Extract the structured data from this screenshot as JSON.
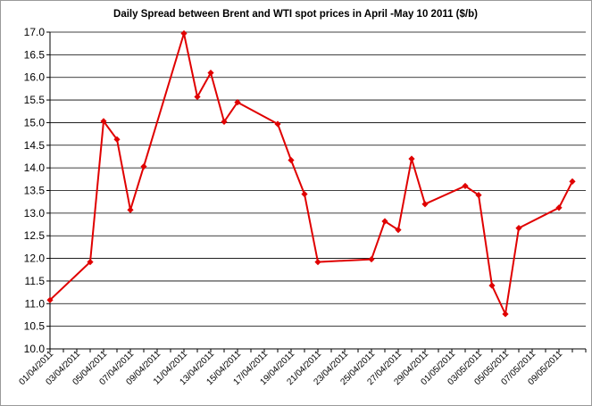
{
  "chart_data": {
    "type": "line",
    "title": "Daily  Spread between Brent and WTI spot prices in April -May 10 2011 ($/b)",
    "xlabel": "",
    "ylabel": "",
    "ylim": [
      10.0,
      17.0
    ],
    "ytick_labels": [
      "10.0",
      "10.5",
      "11.0",
      "11.5",
      "12.0",
      "12.5",
      "13.0",
      "13.5",
      "14.0",
      "14.5",
      "15.0",
      "15.5",
      "16.0",
      "16.5",
      "17.0"
    ],
    "xlim": [
      "01/04/2011",
      "11/05/2011"
    ],
    "xtick_labels": [
      "01/04/2011",
      "03/04/2011",
      "05/04/2011",
      "07/04/2011",
      "09/04/2011",
      "11/04/2011",
      "13/04/2011",
      "15/04/2011",
      "17/04/2011",
      "19/04/2011",
      "21/04/2011",
      "23/04/2011",
      "25/04/2011",
      "27/04/2011",
      "29/04/2011",
      "01/05/2011",
      "03/05/2011",
      "05/05/2011",
      "07/05/2011",
      "09/05/2011"
    ],
    "grid": "horizontal",
    "line_color": "#e00000",
    "series": [
      {
        "points": [
          {
            "x": "01/04/2011",
            "y": 11.08
          },
          {
            "x": "04/04/2011",
            "y": 11.92
          },
          {
            "x": "05/04/2011",
            "y": 15.03
          },
          {
            "x": "06/04/2011",
            "y": 14.63
          },
          {
            "x": "07/04/2011",
            "y": 13.07
          },
          {
            "x": "08/04/2011",
            "y": 14.03
          },
          {
            "x": "11/04/2011",
            "y": 16.97
          },
          {
            "x": "12/04/2011",
            "y": 15.57
          },
          {
            "x": "13/04/2011",
            "y": 16.1
          },
          {
            "x": "14/04/2011",
            "y": 15.02
          },
          {
            "x": "15/04/2011",
            "y": 15.45
          },
          {
            "x": "18/04/2011",
            "y": 14.97
          },
          {
            "x": "19/04/2011",
            "y": 14.17
          },
          {
            "x": "20/04/2011",
            "y": 13.42
          },
          {
            "x": "21/04/2011",
            "y": 11.92
          },
          {
            "x": "25/04/2011",
            "y": 11.98
          },
          {
            "x": "26/04/2011",
            "y": 12.82
          },
          {
            "x": "27/04/2011",
            "y": 12.63
          },
          {
            "x": "28/04/2011",
            "y": 14.2
          },
          {
            "x": "29/04/2011",
            "y": 13.2
          },
          {
            "x": "02/05/2011",
            "y": 13.6
          },
          {
            "x": "03/05/2011",
            "y": 13.4
          },
          {
            "x": "04/05/2011",
            "y": 11.4
          },
          {
            "x": "05/05/2011",
            "y": 10.77
          },
          {
            "x": "06/05/2011",
            "y": 12.67
          },
          {
            "x": "09/05/2011",
            "y": 13.12
          },
          {
            "x": "10/05/2011",
            "y": 13.7
          }
        ]
      }
    ]
  }
}
